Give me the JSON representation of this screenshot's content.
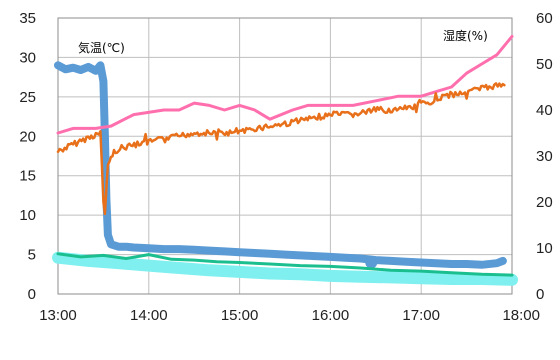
{
  "chart_data": {
    "type": "line",
    "x_unit": "time",
    "xlim": [
      "13:00",
      "18:00"
    ],
    "x_ticks": [
      "13:00",
      "14:00",
      "15:00",
      "16:00",
      "17:00",
      "18:00"
    ],
    "left_axis": {
      "label": "気温(℃)",
      "ylim": [
        0,
        35
      ],
      "ticks": [
        "0",
        "5",
        "10",
        "15",
        "20",
        "25",
        "30",
        "35"
      ]
    },
    "right_axis": {
      "label": "湿度(%)",
      "ylim": [
        0,
        60
      ],
      "ticks": [
        "0",
        "10",
        "20",
        "30",
        "40",
        "50",
        "60"
      ]
    },
    "grid": true,
    "series": [
      {
        "axis": "left",
        "color": "#5b9bd5",
        "style": "thick",
        "points": [
          [
            "13:00",
            29.0
          ],
          [
            "13:05",
            28.5
          ],
          [
            "13:10",
            28.7
          ],
          [
            "13:15",
            28.4
          ],
          [
            "13:20",
            28.8
          ],
          [
            "13:25",
            28.3
          ],
          [
            "13:28",
            29.0
          ],
          [
            "13:30",
            27.0
          ],
          [
            "13:31",
            20.0
          ],
          [
            "13:32",
            12.0
          ],
          [
            "13:33",
            7.5
          ],
          [
            "13:35",
            6.3
          ],
          [
            "13:40",
            6.0
          ],
          [
            "13:45",
            6.0
          ],
          [
            "13:50",
            5.9
          ],
          [
            "14:00",
            5.8
          ],
          [
            "14:10",
            5.7
          ],
          [
            "14:20",
            5.7
          ],
          [
            "14:30",
            5.6
          ],
          [
            "14:40",
            5.5
          ],
          [
            "14:50",
            5.4
          ],
          [
            "15:00",
            5.3
          ],
          [
            "15:10",
            5.2
          ],
          [
            "15:20",
            5.1
          ],
          [
            "15:30",
            5.0
          ],
          [
            "15:40",
            4.9
          ],
          [
            "15:50",
            4.8
          ],
          [
            "16:00",
            4.7
          ],
          [
            "16:10",
            4.6
          ],
          [
            "16:20",
            4.5
          ],
          [
            "16:30",
            4.3
          ],
          [
            "16:40",
            4.2
          ],
          [
            "16:50",
            4.1
          ],
          [
            "17:00",
            4.0
          ],
          [
            "17:10",
            3.9
          ],
          [
            "17:20",
            3.8
          ],
          [
            "17:30",
            3.8
          ],
          [
            "17:40",
            3.7
          ],
          [
            "17:50",
            3.9
          ],
          [
            "17:54",
            4.2
          ]
        ]
      },
      {
        "axis": "left",
        "color": "#5b9bd5",
        "style": "dot",
        "points": [
          [
            "16:27",
            4.0
          ]
        ]
      },
      {
        "axis": "left",
        "color": "#7ff0ef",
        "style": "band",
        "points": [
          [
            "13:00",
            4.6
          ],
          [
            "13:20",
            4.2
          ],
          [
            "13:40",
            3.9
          ],
          [
            "14:00",
            3.6
          ],
          [
            "14:20",
            3.3
          ],
          [
            "14:40",
            3.0
          ],
          [
            "15:00",
            2.8
          ],
          [
            "15:20",
            2.6
          ],
          [
            "15:40",
            2.5
          ],
          [
            "16:00",
            2.3
          ],
          [
            "16:20",
            2.2
          ],
          [
            "16:40",
            2.1
          ],
          [
            "17:00",
            2.0
          ],
          [
            "17:20",
            1.9
          ],
          [
            "17:40",
            1.9
          ],
          [
            "18:00",
            1.8
          ]
        ]
      },
      {
        "axis": "left",
        "color": "#1bbf8f",
        "style": "line",
        "points": [
          [
            "13:00",
            5.1
          ],
          [
            "13:15",
            4.7
          ],
          [
            "13:30",
            4.9
          ],
          [
            "13:45",
            4.5
          ],
          [
            "14:00",
            5.0
          ],
          [
            "14:15",
            4.4
          ],
          [
            "14:30",
            4.3
          ],
          [
            "14:45",
            4.1
          ],
          [
            "15:00",
            4.0
          ],
          [
            "15:20",
            3.8
          ],
          [
            "15:40",
            3.6
          ],
          [
            "16:00",
            3.5
          ],
          [
            "16:20",
            3.3
          ],
          [
            "16:40",
            3.0
          ],
          [
            "17:00",
            2.9
          ],
          [
            "17:20",
            2.7
          ],
          [
            "17:40",
            2.5
          ],
          [
            "18:00",
            2.4
          ]
        ]
      },
      {
        "axis": "right",
        "color": "#ff6fae",
        "style": "line",
        "points": [
          [
            "13:00",
            35
          ],
          [
            "13:10",
            36
          ],
          [
            "13:25",
            36
          ],
          [
            "13:35",
            36.5
          ],
          [
            "13:50",
            39
          ],
          [
            "14:10",
            40
          ],
          [
            "14:20",
            40
          ],
          [
            "14:30",
            41.5
          ],
          [
            "14:40",
            41
          ],
          [
            "14:50",
            40
          ],
          [
            "15:00",
            41
          ],
          [
            "15:10",
            40
          ],
          [
            "15:20",
            38
          ],
          [
            "15:35",
            40
          ],
          [
            "15:45",
            41
          ],
          [
            "16:00",
            41
          ],
          [
            "16:15",
            41
          ],
          [
            "16:30",
            42
          ],
          [
            "16:45",
            43
          ],
          [
            "17:00",
            43
          ],
          [
            "17:10",
            44
          ],
          [
            "17:20",
            45
          ],
          [
            "17:30",
            48
          ],
          [
            "17:40",
            50
          ],
          [
            "17:50",
            52
          ],
          [
            "18:00",
            56
          ]
        ]
      },
      {
        "axis": "right",
        "color": "#e8701a",
        "style": "noisy",
        "points": [
          [
            "13:00",
            31
          ],
          [
            "13:10",
            32.5
          ],
          [
            "13:20",
            34
          ],
          [
            "13:28",
            35
          ],
          [
            "13:30",
            20
          ],
          [
            "13:31",
            18
          ],
          [
            "13:33",
            28
          ],
          [
            "13:37",
            31
          ],
          [
            "13:45",
            32
          ],
          [
            "14:00",
            33
          ],
          [
            "14:15",
            34
          ],
          [
            "14:30",
            35
          ],
          [
            "14:45",
            35
          ],
          [
            "15:00",
            35
          ],
          [
            "15:10",
            36
          ],
          [
            "15:30",
            37
          ],
          [
            "15:45",
            38
          ],
          [
            "16:00",
            39
          ],
          [
            "16:15",
            39
          ],
          [
            "16:30",
            40
          ],
          [
            "16:45",
            40
          ],
          [
            "17:00",
            41
          ],
          [
            "17:15",
            43
          ],
          [
            "17:30",
            44
          ],
          [
            "17:45",
            45
          ],
          [
            "17:55",
            45.5
          ]
        ]
      }
    ]
  }
}
